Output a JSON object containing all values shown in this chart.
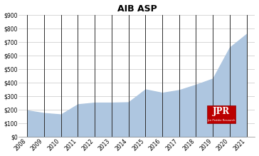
{
  "title": "AIB ASP",
  "years": [
    "2008",
    "2009",
    "2010",
    "2011",
    "2012",
    "2013",
    "2014",
    "2015",
    "2016",
    "2017",
    "2018",
    "2019",
    "2020",
    "2021"
  ],
  "values": [
    195,
    175,
    165,
    240,
    252,
    252,
    255,
    350,
    325,
    345,
    385,
    430,
    660,
    760
  ],
  "fill_color": "#aec6e0",
  "line_color": "#2c2c2c",
  "background_color": "#ffffff",
  "title_fontsize": 9,
  "title_fontweight": "bold",
  "ylim": [
    0,
    900
  ],
  "yticks": [
    0,
    100,
    200,
    300,
    400,
    500,
    600,
    700,
    800,
    900
  ],
  "grid_color": "#c8c8c8",
  "logo_bg": "#bb0000",
  "logo_sub": "Jon Peddie Research"
}
